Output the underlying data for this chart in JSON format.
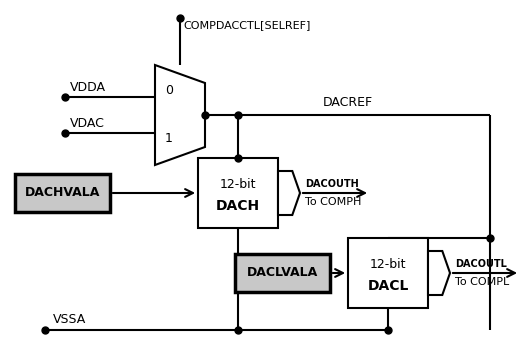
{
  "bg_color": "#ffffff",
  "line_color": "#000000",
  "labels": {
    "compdacctl": "COMPDACCTL[SELREF]",
    "vdda": "VDDA",
    "vdac": "VDAC",
    "mux_0": "0",
    "mux_1": "1",
    "dacref": "DACREF",
    "dachvala": "DACHVALA",
    "dach_12bit": "12-bit",
    "dach_name": "DACH",
    "dacouth": "DACOUTH",
    "to_comph": "To COMPH",
    "daclvala": "DACLVALA",
    "dacl_12bit": "12-bit",
    "dacl_name": "DACL",
    "dacoutl": "DACOUTL",
    "to_compl": "To COMPL",
    "vssa": "VSSA"
  }
}
